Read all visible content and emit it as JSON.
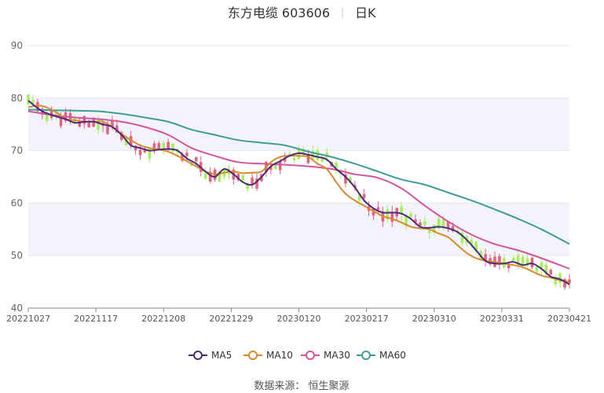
{
  "chart_data": {
    "type": "line",
    "title": "东方电缆 603606",
    "subtitle": "日K",
    "source": "数据来源： 恒生聚源",
    "ylim": [
      40,
      90
    ],
    "yticks": [
      40,
      50,
      60,
      70,
      80,
      90
    ],
    "xticks": [
      "20221027",
      "20221117",
      "20221208",
      "20221229",
      "20230120",
      "20230217",
      "20230310",
      "20230331",
      "20230421"
    ],
    "n_days": 117,
    "grid": true,
    "legend_position": "bottom",
    "colors": {
      "up": "#e8617c",
      "down": "#a5ef5a",
      "band": "#f3f4fb",
      "grid": "#e6e8f2"
    },
    "series": [
      {
        "name": "MA5",
        "color": "#4c2b7c",
        "points": [
          [
            0,
            79.5
          ],
          [
            3,
            77.5
          ],
          [
            6,
            76.5
          ],
          [
            8,
            76
          ],
          [
            10,
            75.3
          ],
          [
            12,
            75.5
          ],
          [
            14,
            75.5
          ],
          [
            16,
            75
          ],
          [
            18,
            74.5
          ],
          [
            20,
            73
          ],
          [
            22,
            71
          ],
          [
            24,
            70.5
          ],
          [
            26,
            70
          ],
          [
            28,
            70.2
          ],
          [
            30,
            70.3
          ],
          [
            32,
            70
          ],
          [
            34,
            68.5
          ],
          [
            36,
            67.5
          ],
          [
            38,
            66
          ],
          [
            40,
            65
          ],
          [
            42,
            66.5
          ],
          [
            44,
            65.5
          ],
          [
            46,
            64
          ],
          [
            48,
            63.5
          ],
          [
            50,
            65
          ],
          [
            52,
            67
          ],
          [
            54,
            68
          ],
          [
            56,
            69
          ],
          [
            58,
            69.5
          ],
          [
            60,
            69.2
          ],
          [
            62,
            68.8
          ],
          [
            64,
            68.3
          ],
          [
            66,
            66.5
          ],
          [
            68,
            65
          ],
          [
            70,
            63
          ],
          [
            72,
            60.5
          ],
          [
            74,
            59
          ],
          [
            76,
            58.2
          ],
          [
            78,
            58.2
          ],
          [
            80,
            58
          ],
          [
            82,
            57
          ],
          [
            84,
            55.5
          ],
          [
            86,
            55.3
          ],
          [
            88,
            55.5
          ],
          [
            90,
            55.2
          ],
          [
            92,
            54.5
          ],
          [
            94,
            53
          ],
          [
            96,
            51
          ],
          [
            98,
            49
          ],
          [
            100,
            48.5
          ],
          [
            102,
            48.5
          ],
          [
            104,
            48.8
          ],
          [
            106,
            48.2
          ],
          [
            108,
            48.5
          ],
          [
            110,
            47.5
          ],
          [
            112,
            46
          ],
          [
            114,
            45.5
          ],
          [
            116,
            44.5
          ]
        ]
      },
      {
        "name": "MA10",
        "color": "#d98a2f",
        "points": [
          [
            0,
            78.3
          ],
          [
            3,
            78.5
          ],
          [
            6,
            77.3
          ],
          [
            8,
            76
          ],
          [
            10,
            75.8
          ],
          [
            12,
            75.5
          ],
          [
            14,
            75.5
          ],
          [
            16,
            75.5
          ],
          [
            18,
            74.5
          ],
          [
            20,
            73.2
          ],
          [
            22,
            72
          ],
          [
            24,
            71
          ],
          [
            26,
            70.5
          ],
          [
            28,
            70.2
          ],
          [
            30,
            69.8
          ],
          [
            32,
            69
          ],
          [
            34,
            68
          ],
          [
            36,
            67
          ],
          [
            38,
            66
          ],
          [
            40,
            65.5
          ],
          [
            42,
            65.8
          ],
          [
            44,
            66
          ],
          [
            46,
            65.7
          ],
          [
            48,
            65.8
          ],
          [
            50,
            66
          ],
          [
            52,
            67.8
          ],
          [
            54,
            68.8
          ],
          [
            56,
            69
          ],
          [
            58,
            69
          ],
          [
            60,
            68.8
          ],
          [
            62,
            67.5
          ],
          [
            64,
            66.5
          ],
          [
            66,
            64
          ],
          [
            68,
            61.8
          ],
          [
            70,
            60.5
          ],
          [
            72,
            59.5
          ],
          [
            74,
            58.5
          ],
          [
            76,
            57.5
          ],
          [
            78,
            57
          ],
          [
            80,
            56.3
          ],
          [
            82,
            55.5
          ],
          [
            84,
            55.2
          ],
          [
            86,
            55
          ],
          [
            88,
            54.2
          ],
          [
            90,
            53.5
          ],
          [
            92,
            52
          ],
          [
            94,
            50.5
          ],
          [
            96,
            49.5
          ],
          [
            98,
            49
          ],
          [
            100,
            48.8
          ],
          [
            102,
            48.5
          ],
          [
            104,
            48.2
          ],
          [
            106,
            47.8
          ],
          [
            108,
            47
          ],
          [
            110,
            46.2
          ],
          [
            112,
            45.8
          ],
          [
            114,
            45.3
          ],
          [
            116,
            45
          ]
        ]
      },
      {
        "name": "MA30",
        "color": "#d4559f",
        "points": [
          [
            0,
            77.5
          ],
          [
            5,
            76.8
          ],
          [
            10,
            76.3
          ],
          [
            15,
            76
          ],
          [
            20,
            75.5
          ],
          [
            25,
            74.5
          ],
          [
            30,
            73
          ],
          [
            35,
            70.5
          ],
          [
            40,
            69
          ],
          [
            45,
            67.8
          ],
          [
            50,
            67.5
          ],
          [
            55,
            67.3
          ],
          [
            60,
            67
          ],
          [
            65,
            66.5
          ],
          [
            70,
            65.5
          ],
          [
            75,
            64.8
          ],
          [
            80,
            62.8
          ],
          [
            85,
            59.5
          ],
          [
            90,
            56.5
          ],
          [
            95,
            54
          ],
          [
            100,
            52.2
          ],
          [
            105,
            51
          ],
          [
            110,
            49.5
          ],
          [
            116,
            47.5
          ]
        ]
      },
      {
        "name": "MA60",
        "color": "#3f9c98",
        "points": [
          [
            0,
            77.8
          ],
          [
            5,
            77.7
          ],
          [
            10,
            77.6
          ],
          [
            15,
            77.5
          ],
          [
            20,
            77
          ],
          [
            25,
            76.3
          ],
          [
            30,
            75.5
          ],
          [
            35,
            74
          ],
          [
            40,
            73
          ],
          [
            45,
            72
          ],
          [
            50,
            71.5
          ],
          [
            55,
            71
          ],
          [
            60,
            69.8
          ],
          [
            65,
            68.8
          ],
          [
            70,
            67.5
          ],
          [
            75,
            66
          ],
          [
            80,
            64.5
          ],
          [
            85,
            63.5
          ],
          [
            90,
            62
          ],
          [
            95,
            60.5
          ],
          [
            100,
            58.8
          ],
          [
            105,
            57
          ],
          [
            110,
            55
          ],
          [
            116,
            52.2
          ]
        ]
      }
    ]
  }
}
